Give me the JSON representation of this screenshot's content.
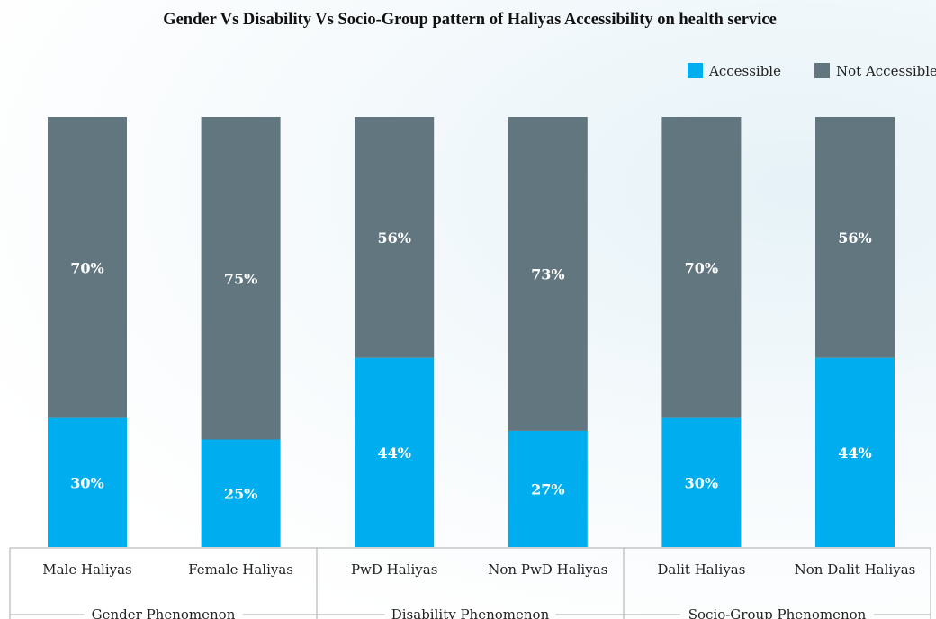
{
  "chart_data": {
    "type": "bar",
    "stacked": true,
    "title": "Gender  Vs Disability Vs Socio-Group pattern of Haliyas Accessibility on health service",
    "categories": [
      "Male Haliyas",
      "Female Haliyas",
      "PwD Haliyas",
      "Non PwD Haliyas",
      "Dalit Haliyas",
      "Non Dalit Haliyas"
    ],
    "series": [
      {
        "name": "Accessible",
        "values": [
          30,
          25,
          44,
          27,
          30,
          44
        ],
        "labels": [
          "30%",
          "25%",
          "44%",
          "27%",
          "30%",
          "44%"
        ],
        "color": "#00aeef"
      },
      {
        "name": "Not Accessible",
        "values": [
          70,
          75,
          56,
          73,
          70,
          56
        ],
        "labels": [
          "70%",
          "75%",
          "56%",
          "73%",
          "70%",
          "56%"
        ],
        "color": "#62767f"
      }
    ],
    "groups": [
      {
        "label": "Gender Phenomenon",
        "categories": [
          "Male Haliyas",
          "Female Haliyas"
        ]
      },
      {
        "label": "Disability Phenomenon",
        "categories": [
          "PwD Haliyas",
          "Non PwD Haliyas"
        ]
      },
      {
        "label": "Socio-Group Phenomenon",
        "categories": [
          "Dalit Haliyas",
          "Non Dalit Haliyas"
        ]
      }
    ],
    "ylim": [
      0,
      100
    ],
    "grid": false,
    "legend_position": "top-right"
  }
}
